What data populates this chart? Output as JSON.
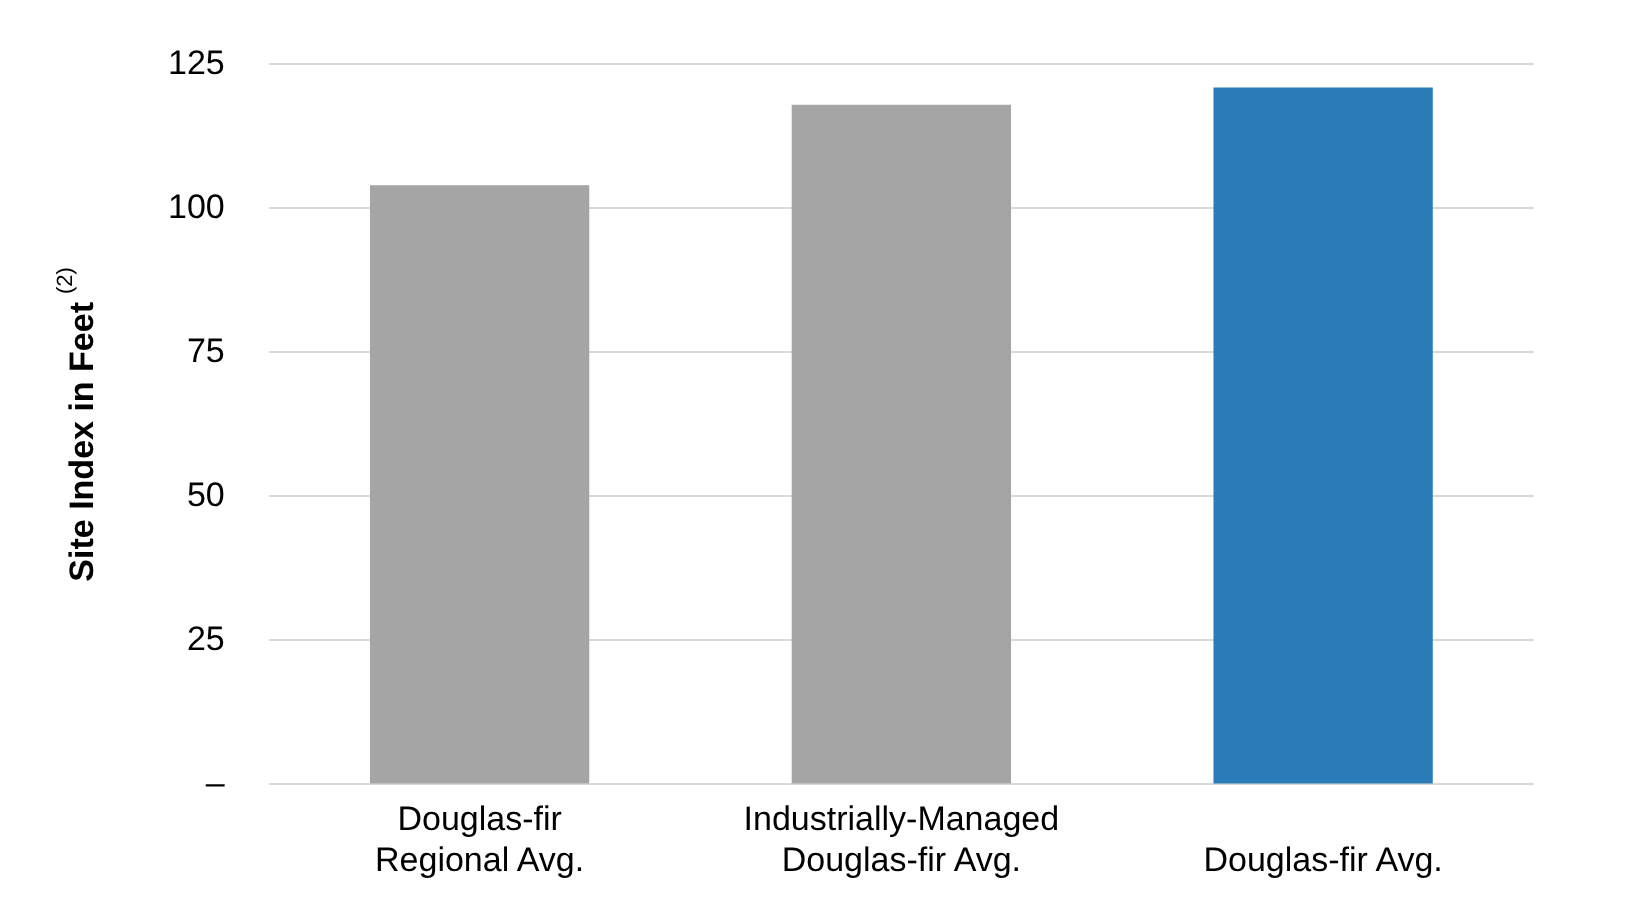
{
  "chart_data": {
    "type": "bar",
    "ylabel": "Site Index in Feet $^{(2)}$",
    "categories": [
      "Douglas-fir\nRegional Avg.",
      "Industrially-Managed\nDouglas-fir Avg.",
      "\nDouglas-fir Avg."
    ],
    "values": [
      104,
      118,
      121
    ],
    "colors": [
      "#a5a5a5",
      "#a5a5a5",
      "#2a7bb8"
    ],
    "ylim": [
      0,
      125
    ],
    "yticks": [
      {
        "value": 0,
        "label": "–"
      },
      25,
      50,
      75,
      100,
      125
    ],
    "grid": "y",
    "legend": false
  }
}
